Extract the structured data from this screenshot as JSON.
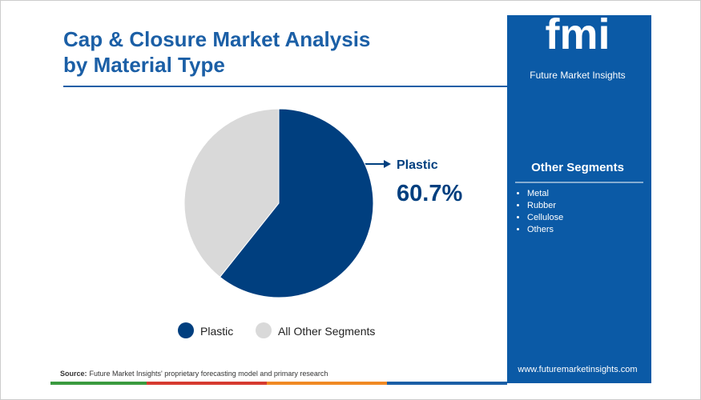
{
  "chart_data": {
    "type": "pie",
    "title": "Cap & Closure Market Analysis by Material Type",
    "categories": [
      "Plastic",
      "All Other Segments"
    ],
    "values": [
      60.7,
      39.3
    ],
    "value_labels": [
      "60.7%",
      null
    ],
    "colors": [
      "#003f7f",
      "#d9d9d9"
    ],
    "legend": "bottom"
  },
  "sidebar": {
    "logo": "fmi",
    "brand": "Future Market Insights",
    "heading": "Other Segments",
    "items": [
      "Metal",
      "Rubber",
      "Cellulose",
      "Others"
    ],
    "website": "www.futuremarketinsights.com"
  },
  "source": {
    "label": "Source:",
    "text": "Future Market Insights' proprietary forecasting model and primary research"
  }
}
